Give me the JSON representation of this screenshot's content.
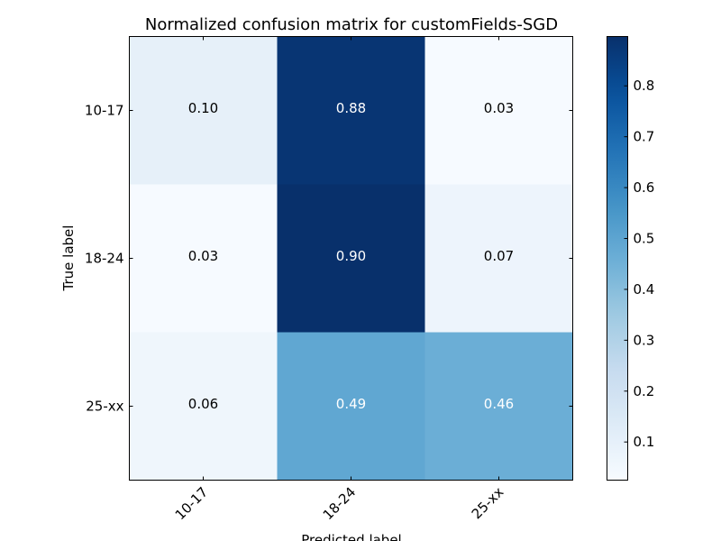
{
  "chart_data": {
    "type": "heatmap",
    "title": "Normalized confusion matrix for customFields-SGD",
    "xlabel": "Predicted label",
    "ylabel": "True label",
    "x_categories": [
      "10-17",
      "18-24",
      "25-xx"
    ],
    "y_categories": [
      "10-17",
      "18-24",
      "25-xx"
    ],
    "values": [
      [
        0.1,
        0.88,
        0.03
      ],
      [
        0.03,
        0.9,
        0.07
      ],
      [
        0.06,
        0.49,
        0.46
      ]
    ],
    "value_labels": [
      [
        "0.10",
        "0.88",
        "0.03"
      ],
      [
        "0.03",
        "0.90",
        "0.07"
      ],
      [
        "0.06",
        "0.49",
        "0.46"
      ]
    ],
    "colormap": "Blues",
    "colorbar": {
      "range": [
        0.025,
        0.897
      ],
      "ticks": [
        0.1,
        0.2,
        0.3,
        0.4,
        0.5,
        0.6,
        0.7,
        0.8
      ],
      "tick_labels": [
        "0.1",
        "0.2",
        "0.3",
        "0.4",
        "0.5",
        "0.6",
        "0.7",
        "0.8"
      ]
    },
    "grid": false,
    "legend": "colorbar-right"
  }
}
